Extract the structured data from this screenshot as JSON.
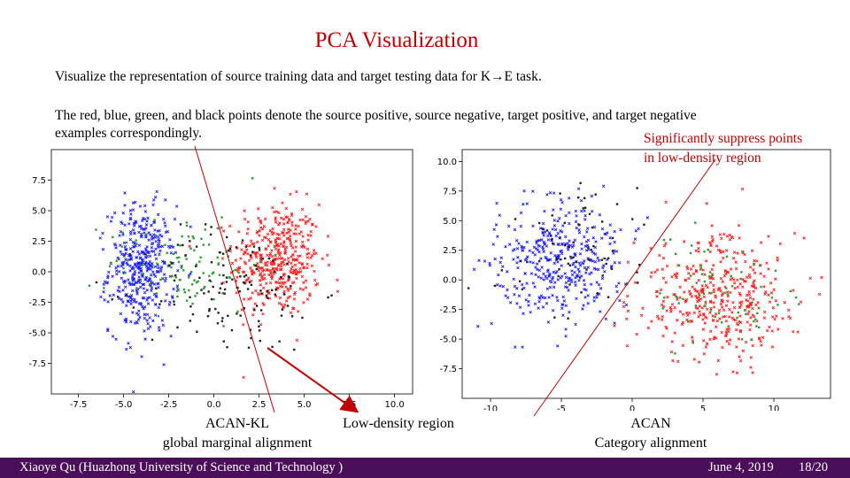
{
  "slide": {
    "title": "PCA Visualization",
    "line1": "Visualize the representation of source training data and target testing data for K→E task.",
    "line2": "The red, blue, green, and black points denote the source positive, source negative, target positive, and target negative",
    "line3": "examples correspondingly.",
    "note_line1": "Significantly suppress points",
    "note_line2": "in low-density region",
    "left_caption_1": "ACAN-KL",
    "left_caption_2": "global marginal alignment",
    "middle_caption": "Low-density region",
    "right_caption_1": "ACAN",
    "right_caption_2": "Category alignment"
  },
  "footer": {
    "author": "Xiaoye Qu (Huazhong University of Science and Technology )",
    "date": "June 4, 2019",
    "page": "18/20"
  },
  "colors": {
    "accent": "#c00000",
    "footer_bg": "#4b0f5a",
    "source_positive": "#ff1a1a",
    "source_negative": "#1a1aff",
    "target_positive": "#2ca02c",
    "target_negative": "#222222"
  },
  "chart_data": [
    {
      "type": "scatter",
      "name": "ACAN-KL",
      "xlim": [
        -9,
        11
      ],
      "ylim": [
        -10,
        10
      ],
      "xticks": [
        "-7.5",
        "-5.0",
        "-2.5",
        "0.0",
        "2.5",
        "5.0",
        "7.5",
        "10.0"
      ],
      "xtick_values": [
        -7.5,
        -5.0,
        -2.5,
        0.0,
        2.5,
        5.0,
        7.5,
        10.0
      ],
      "yticks": [
        "7.5",
        "5.0",
        "2.5",
        "0.0",
        "-2.5",
        "-5.0",
        "-7.5"
      ],
      "ytick_values": [
        7.5,
        5.0,
        2.5,
        0.0,
        -2.5,
        -5.0,
        -7.5
      ],
      "series": [
        {
          "name": "source positive",
          "color": "red",
          "clusters": [
            {
              "cx": 3.5,
              "cy": 1.0,
              "sx": 1.2,
              "sy": 2.3,
              "n": 420
            }
          ]
        },
        {
          "name": "source negative",
          "color": "blue",
          "clusters": [
            {
              "cx": -4.0,
              "cy": 0.2,
              "sx": 0.9,
              "sy": 2.6,
              "n": 420
            }
          ]
        },
        {
          "name": "target positive",
          "color": "green",
          "clusters": [
            {
              "cx": -1.5,
              "cy": 0.8,
              "sx": 2.2,
              "sy": 2.0,
              "n": 110
            }
          ]
        },
        {
          "name": "target negative",
          "color": "black",
          "clusters": [
            {
              "cx": 1.0,
              "cy": -1.5,
              "sx": 2.4,
              "sy": 2.6,
              "n": 130
            }
          ]
        }
      ]
    },
    {
      "type": "scatter",
      "name": "ACAN",
      "xlim": [
        -12,
        14
      ],
      "ylim": [
        -10,
        11
      ],
      "xticks": [
        "-10",
        "-5",
        "0",
        "5",
        "10"
      ],
      "xtick_values": [
        -10,
        -5,
        0,
        5,
        10
      ],
      "yticks": [
        "10.0",
        "7.5",
        "5.0",
        "2.5",
        "0.0",
        "-2.5",
        "-5.0",
        "-7.5"
      ],
      "ytick_values": [
        10.0,
        7.5,
        5.0,
        2.5,
        0.0,
        -2.5,
        -5.0,
        -7.5
      ],
      "series": [
        {
          "name": "source positive",
          "color": "red",
          "clusters": [
            {
              "cx": 6.0,
              "cy": -1.5,
              "sx": 2.8,
              "sy": 2.6,
              "n": 420
            }
          ]
        },
        {
          "name": "source negative",
          "color": "blue",
          "clusters": [
            {
              "cx": -5.0,
              "cy": 1.5,
              "sx": 2.3,
              "sy": 2.5,
              "n": 380
            }
          ]
        },
        {
          "name": "target positive",
          "color": "green",
          "clusters": [
            {
              "cx": 5.5,
              "cy": -1.0,
              "sx": 2.6,
              "sy": 2.4,
              "n": 70
            }
          ]
        },
        {
          "name": "target negative",
          "color": "black",
          "clusters": [
            {
              "cx": -3.5,
              "cy": 3.0,
              "sx": 2.4,
              "sy": 2.6,
              "n": 70
            }
          ]
        }
      ]
    }
  ]
}
